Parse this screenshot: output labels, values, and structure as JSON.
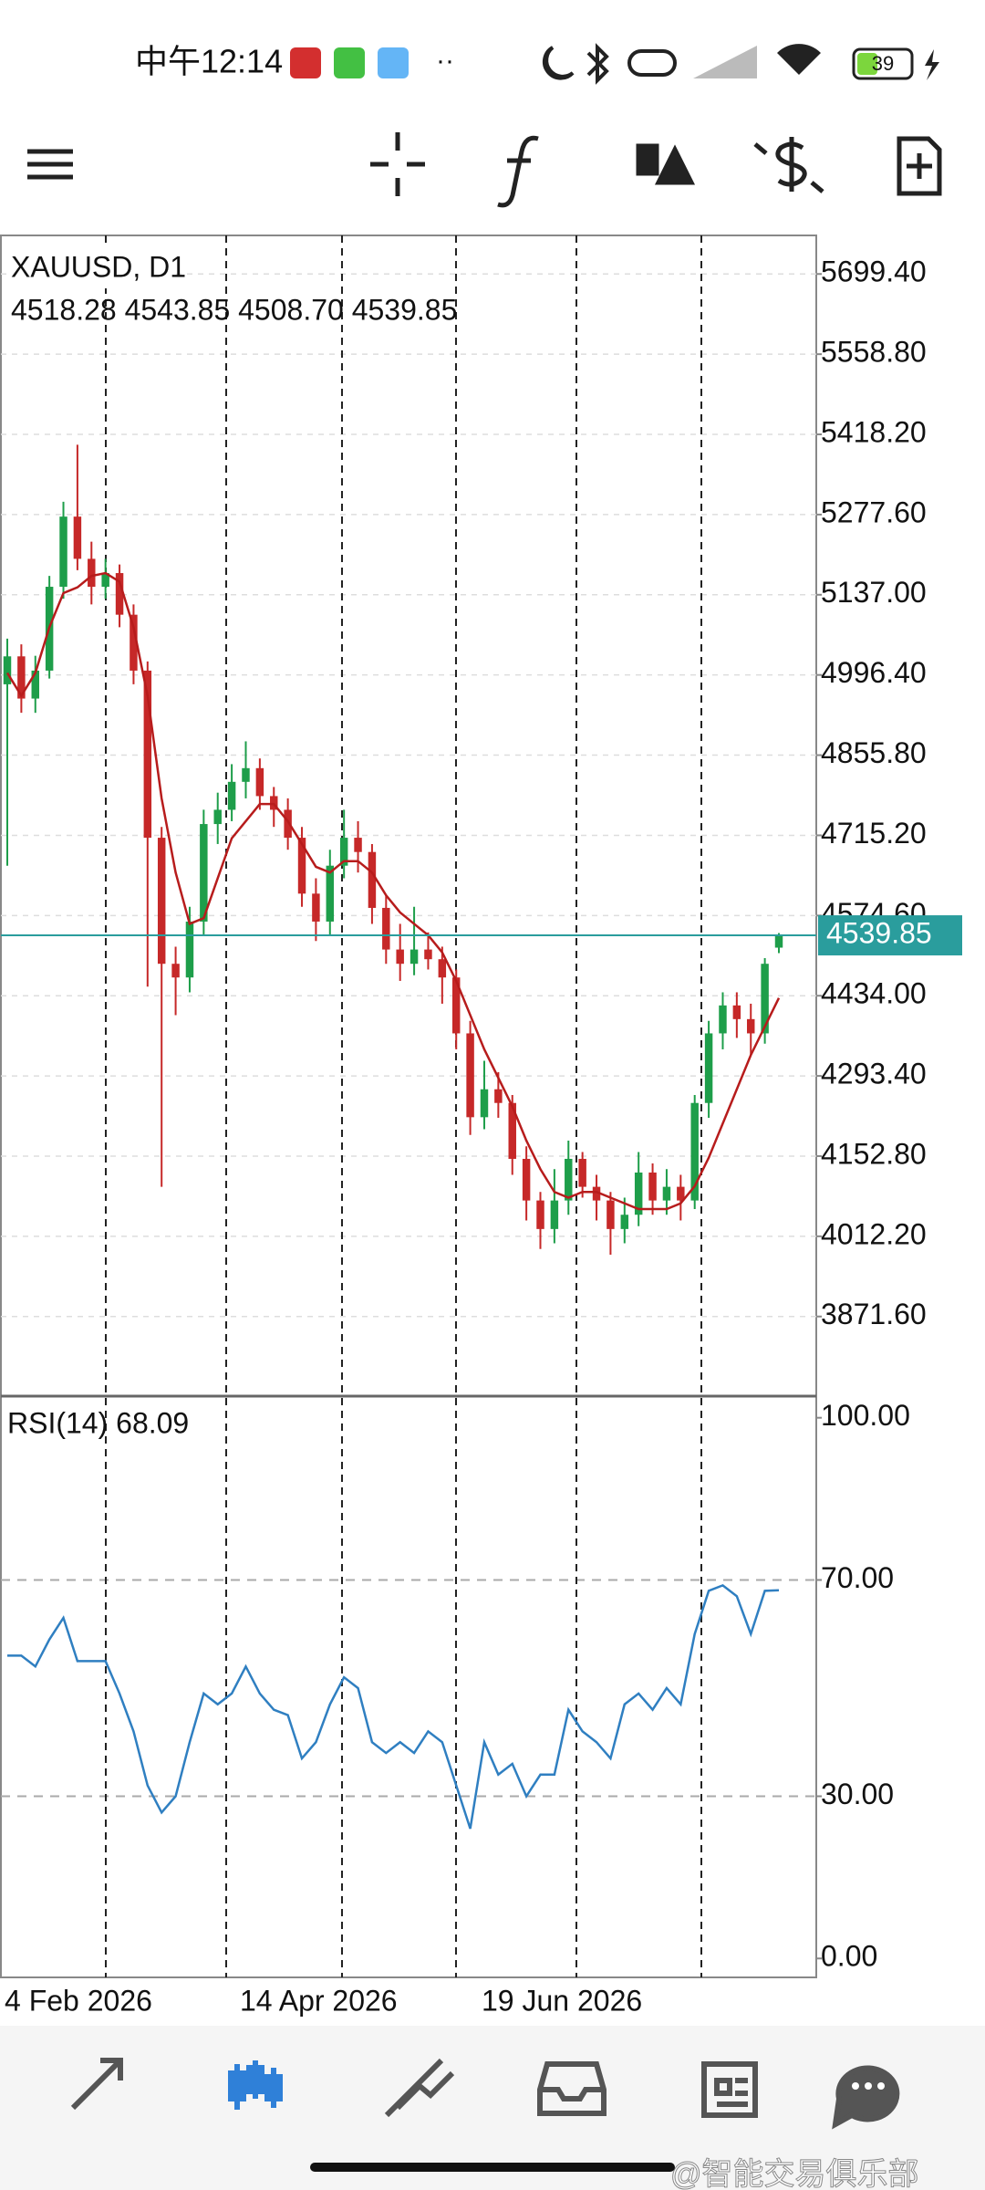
{
  "status_bar": {
    "time": "中午12:14",
    "battery": "39"
  },
  "chart": {
    "type": "candlestick",
    "symbol_label": "XAUUSD, D1",
    "ohlc_label": "4518.28 4543.85 4508.70 4539.85",
    "up_color": "#1e9e4a",
    "down_color": "#c62828",
    "ma_color": "#b71c1c",
    "grid": true,
    "open": [
      4980,
      5029,
      4955,
      5004,
      5151,
      5274,
      5200,
      5151,
      5175,
      5102,
      5004,
      4711,
      4490,
      4466,
      4564,
      4735,
      4760,
      4809,
      4833,
      4784,
      4760,
      4711,
      4613,
      4564,
      4662,
      4711,
      4686,
      4588,
      4515,
      4490,
      4515,
      4498,
      4466,
      4368,
      4221,
      4270,
      4246,
      4148,
      4075,
      4025,
      4075,
      4148,
      4099,
      4075,
      4025,
      4050,
      4124,
      4075,
      4099,
      4075,
      4246,
      4368,
      4417,
      4393,
      4368,
      4518.28
    ],
    "high": [
      5060,
      5050,
      5030,
      5170,
      5300,
      5400,
      5230,
      5200,
      5190,
      5120,
      5020,
      4730,
      4520,
      4590,
      4760,
      4790,
      4840,
      4880,
      4850,
      4800,
      4780,
      4730,
      4640,
      4690,
      4760,
      4740,
      4700,
      4610,
      4560,
      4590,
      4545,
      4520,
      4480,
      4390,
      4320,
      4300,
      4260,
      4170,
      4090,
      4130,
      4180,
      4160,
      4120,
      4090,
      4080,
      4160,
      4140,
      4130,
      4120,
      4260,
      4390,
      4440,
      4440,
      4420,
      4500,
      4543.85
    ],
    "low": [
      4662,
      4930,
      4930,
      4990,
      5130,
      5180,
      5120,
      5130,
      5080,
      4980,
      4450,
      4099,
      4400,
      4440,
      4540,
      4700,
      4740,
      4780,
      4760,
      4730,
      4690,
      4590,
      4530,
      4540,
      4640,
      4650,
      4560,
      4490,
      4460,
      4470,
      4480,
      4420,
      4340,
      4190,
      4200,
      4220,
      4120,
      4040,
      3990,
      4000,
      4050,
      4080,
      4040,
      3980,
      4000,
      4030,
      4050,
      4050,
      4040,
      4060,
      4220,
      4340,
      4360,
      4330,
      4350,
      4508.7
    ],
    "close": [
      5029,
      4955,
      5004,
      5151,
      5274,
      5200,
      5151,
      5175,
      5102,
      5004,
      4711,
      4490,
      4466,
      4564,
      4735,
      4760,
      4809,
      4833,
      4784,
      4760,
      4711,
      4613,
      4564,
      4662,
      4711,
      4686,
      4588,
      4515,
      4490,
      4515,
      4498,
      4466,
      4368,
      4221,
      4270,
      4246,
      4148,
      4075,
      4025,
      4075,
      4148,
      4099,
      4075,
      4025,
      4050,
      4124,
      4075,
      4099,
      4075,
      4246,
      4368,
      4417,
      4393,
      4368,
      4490,
      4539.85
    ],
    "ma": [
      5000,
      4960,
      5000,
      5080,
      5140,
      5150,
      5170,
      5175,
      5160,
      5080,
      4960,
      4780,
      4650,
      4560,
      4570,
      4640,
      4710,
      4740,
      4770,
      4770,
      4740,
      4700,
      4660,
      4650,
      4670,
      4670,
      4650,
      4610,
      4580,
      4560,
      4540,
      4510,
      4460,
      4400,
      4340,
      4290,
      4240,
      4180,
      4130,
      4090,
      4080,
      4090,
      4090,
      4080,
      4070,
      4060,
      4060,
      4060,
      4070,
      4100,
      4150,
      4210,
      4270,
      4330,
      4380,
      4430
    ],
    "ylim": [
      3732,
      5767
    ],
    "yticks": [
      {
        "value": 5699.4,
        "label": "5699.40"
      },
      {
        "value": 5558.8,
        "label": "5558.80"
      },
      {
        "value": 5418.2,
        "label": "5418.20"
      },
      {
        "value": 5277.6,
        "label": "5277.60"
      },
      {
        "value": 5137,
        "label": "5137.00"
      },
      {
        "value": 4996.4,
        "label": "4996.40"
      },
      {
        "value": 4855.8,
        "label": "4855.80"
      },
      {
        "value": 4715.2,
        "label": "4715.20"
      },
      {
        "value": 4574.6,
        "label": "4574.60"
      },
      {
        "value": 4434,
        "label": "4434.00"
      },
      {
        "value": 4293.4,
        "label": "4293.40"
      },
      {
        "value": 4152.8,
        "label": "4152.80"
      },
      {
        "value": 4012.2,
        "label": "4012.20"
      },
      {
        "value": 3871.6,
        "label": "3871.60"
      }
    ],
    "current_price": 4539.85,
    "current_price_color": "#2a9d9d",
    "rsi": {
      "label": "RSI(14) 68.09",
      "color": "#2f7fc1",
      "values": [
        56,
        56,
        54,
        59,
        63,
        55,
        55,
        55,
        49,
        42,
        32,
        27,
        30,
        40,
        49,
        47,
        49,
        54,
        49,
        46,
        45,
        37,
        40,
        47,
        52,
        50,
        40,
        38,
        40,
        38,
        42,
        40,
        32,
        24,
        40,
        34,
        36,
        30,
        34,
        34,
        46,
        42,
        40,
        37,
        47,
        49,
        46,
        50,
        47,
        60,
        68,
        69,
        67,
        60,
        68,
        68.09
      ],
      "ylim": [
        -3.5,
        104
      ],
      "yticks": [
        {
          "value": 100,
          "label": "100.00"
        },
        {
          "value": 70,
          "label": "70.00"
        },
        {
          "value": 30,
          "label": "30.00"
        },
        {
          "value": 0,
          "label": "0.00"
        }
      ],
      "levels": [
        70,
        30
      ]
    },
    "date_labels": [
      "4 Feb 2026",
      "14 Apr 2026",
      "19 Jun 2026"
    ]
  },
  "watermark": "@智能交易俱乐部"
}
